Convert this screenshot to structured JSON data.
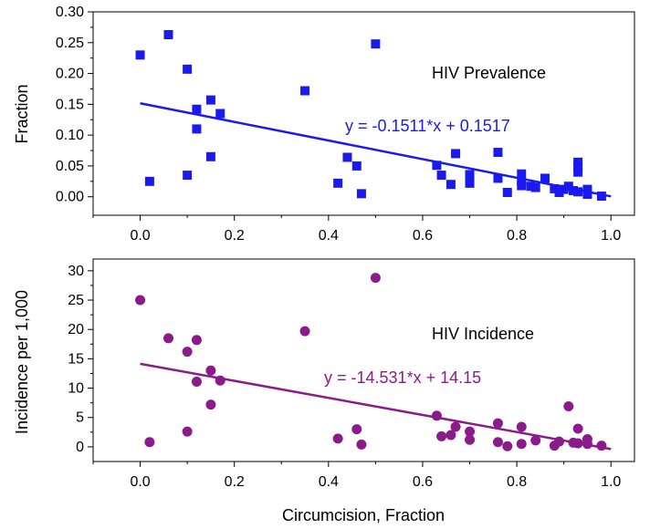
{
  "chart_data": [
    {
      "type": "scatter",
      "title": "",
      "xlabel": "",
      "ylabel": "Fraction",
      "xlim": [
        -0.1,
        1.05
      ],
      "ylim": [
        -0.03,
        0.3
      ],
      "xticks": [
        "0.0",
        "0.2",
        "0.4",
        "0.6",
        "0.8",
        "1.0"
      ],
      "xtick_values": [
        0.0,
        0.2,
        0.4,
        0.6,
        0.8,
        1.0
      ],
      "yticks": [
        "0.00",
        "0.05",
        "0.10",
        "0.15",
        "0.20",
        "0.25",
        "0.30"
      ],
      "ytick_values": [
        0.0,
        0.05,
        0.1,
        0.15,
        0.2,
        0.25,
        0.3
      ],
      "marker": "square",
      "color": "#1a1aee",
      "annotations": [
        "HIV Prevalence",
        "y = -0.1511*x + 0.1517"
      ],
      "trendline": {
        "slope": -0.1511,
        "intercept": 0.1517,
        "x": [
          0.0,
          1.0
        ]
      },
      "points": [
        [
          0.0,
          0.23
        ],
        [
          0.02,
          0.025
        ],
        [
          0.06,
          0.263
        ],
        [
          0.1,
          0.207
        ],
        [
          0.1,
          0.035
        ],
        [
          0.12,
          0.142
        ],
        [
          0.12,
          0.11
        ],
        [
          0.15,
          0.157
        ],
        [
          0.15,
          0.065
        ],
        [
          0.17,
          0.135
        ],
        [
          0.35,
          0.172
        ],
        [
          0.42,
          0.022
        ],
        [
          0.44,
          0.064
        ],
        [
          0.46,
          0.05
        ],
        [
          0.47,
          0.005
        ],
        [
          0.5,
          0.248
        ],
        [
          0.63,
          0.051
        ],
        [
          0.64,
          0.035
        ],
        [
          0.66,
          0.02
        ],
        [
          0.67,
          0.07
        ],
        [
          0.7,
          0.036
        ],
        [
          0.7,
          0.028
        ],
        [
          0.7,
          0.022
        ],
        [
          0.76,
          0.072
        ],
        [
          0.76,
          0.03
        ],
        [
          0.78,
          0.007
        ],
        [
          0.81,
          0.037
        ],
        [
          0.81,
          0.025
        ],
        [
          0.81,
          0.018
        ],
        [
          0.83,
          0.017
        ],
        [
          0.84,
          0.015
        ],
        [
          0.86,
          0.03
        ],
        [
          0.88,
          0.013
        ],
        [
          0.89,
          0.007
        ],
        [
          0.9,
          0.012
        ],
        [
          0.91,
          0.017
        ],
        [
          0.92,
          0.01
        ],
        [
          0.93,
          0.056
        ],
        [
          0.93,
          0.048
        ],
        [
          0.93,
          0.04
        ],
        [
          0.93,
          0.008
        ],
        [
          0.95,
          0.012
        ],
        [
          0.95,
          0.004
        ],
        [
          0.98,
          0.001
        ]
      ]
    },
    {
      "type": "scatter",
      "title": "",
      "xlabel": "Circumcision, Fraction",
      "ylabel": "Incidence per 1,000",
      "xlim": [
        -0.1,
        1.05
      ],
      "ylim": [
        -2.5,
        32
      ],
      "xticks": [
        "0.0",
        "0.2",
        "0.4",
        "0.6",
        "0.8",
        "1.0"
      ],
      "xtick_values": [
        0.0,
        0.2,
        0.4,
        0.6,
        0.8,
        1.0
      ],
      "yticks": [
        "0",
        "5",
        "10",
        "15",
        "20",
        "25",
        "30"
      ],
      "ytick_values": [
        0,
        5,
        10,
        15,
        20,
        25,
        30
      ],
      "marker": "circle",
      "color": "#8b1a8b",
      "annotations": [
        "HIV Incidence",
        "y = -14.531*x + 14.15"
      ],
      "trendline": {
        "slope": -14.531,
        "intercept": 14.15,
        "x": [
          0.0,
          1.0
        ]
      },
      "points": [
        [
          0.0,
          25.0
        ],
        [
          0.02,
          0.8
        ],
        [
          0.06,
          18.5
        ],
        [
          0.1,
          16.2
        ],
        [
          0.1,
          2.6
        ],
        [
          0.12,
          18.2
        ],
        [
          0.12,
          11.1
        ],
        [
          0.15,
          13.0
        ],
        [
          0.15,
          7.2
        ],
        [
          0.17,
          11.3
        ],
        [
          0.35,
          19.7
        ],
        [
          0.42,
          1.4
        ],
        [
          0.46,
          3.0
        ],
        [
          0.47,
          0.4
        ],
        [
          0.5,
          28.8
        ],
        [
          0.63,
          5.3
        ],
        [
          0.64,
          1.8
        ],
        [
          0.66,
          2.0
        ],
        [
          0.67,
          3.4
        ],
        [
          0.7,
          2.6
        ],
        [
          0.7,
          1.2
        ],
        [
          0.76,
          4.0
        ],
        [
          0.76,
          0.8
        ],
        [
          0.78,
          0.1
        ],
        [
          0.81,
          3.4
        ],
        [
          0.81,
          0.5
        ],
        [
          0.84,
          1.1
        ],
        [
          0.88,
          0.2
        ],
        [
          0.89,
          0.9
        ],
        [
          0.91,
          6.9
        ],
        [
          0.92,
          0.7
        ],
        [
          0.93,
          3.1
        ],
        [
          0.93,
          0.6
        ],
        [
          0.95,
          1.3
        ],
        [
          0.95,
          0.5
        ],
        [
          0.98,
          0.2
        ]
      ]
    }
  ]
}
